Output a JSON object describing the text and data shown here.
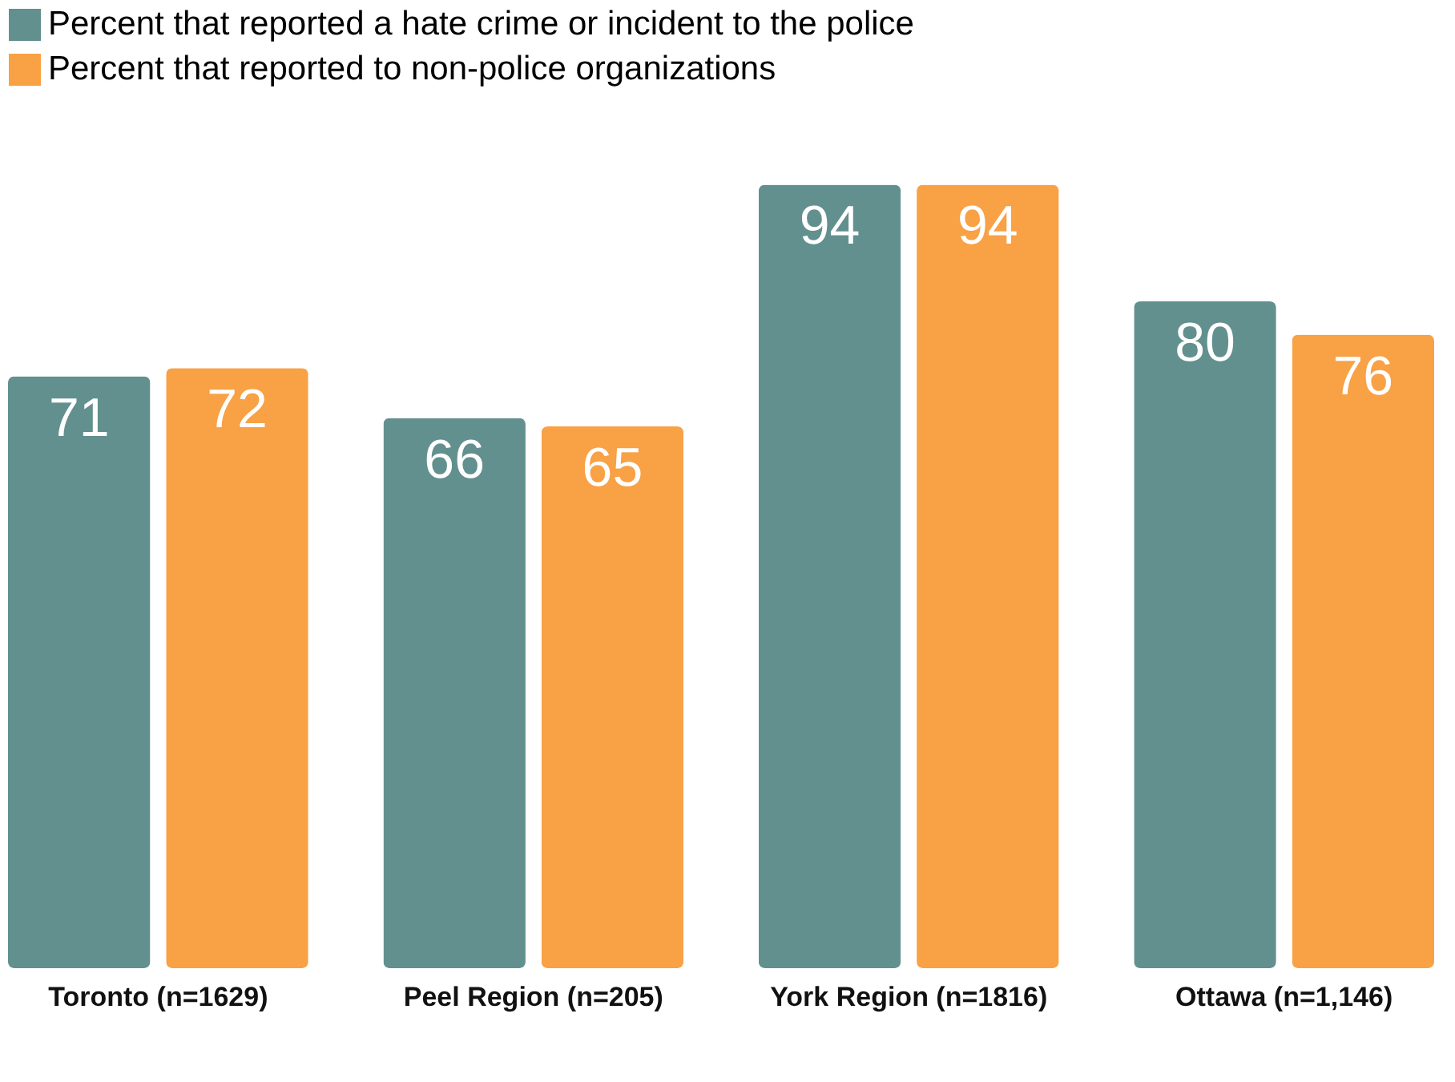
{
  "chart_data": {
    "type": "bar",
    "categories": [
      "Toronto (n=1629)",
      "Peel Region (n=205)",
      "York Region (n=1816)",
      "Ottawa (n=1,146)"
    ],
    "series": [
      {
        "name": "Percent that reported a hate crime or incident to the police",
        "color": "#62908e",
        "values": [
          71,
          66,
          94,
          80
        ]
      },
      {
        "name": "Percent that reported to non-police organizations",
        "color": "#f8a145",
        "values": [
          72,
          65,
          94,
          76
        ]
      }
    ],
    "data_labels": true,
    "legend": "top",
    "grid": false
  }
}
